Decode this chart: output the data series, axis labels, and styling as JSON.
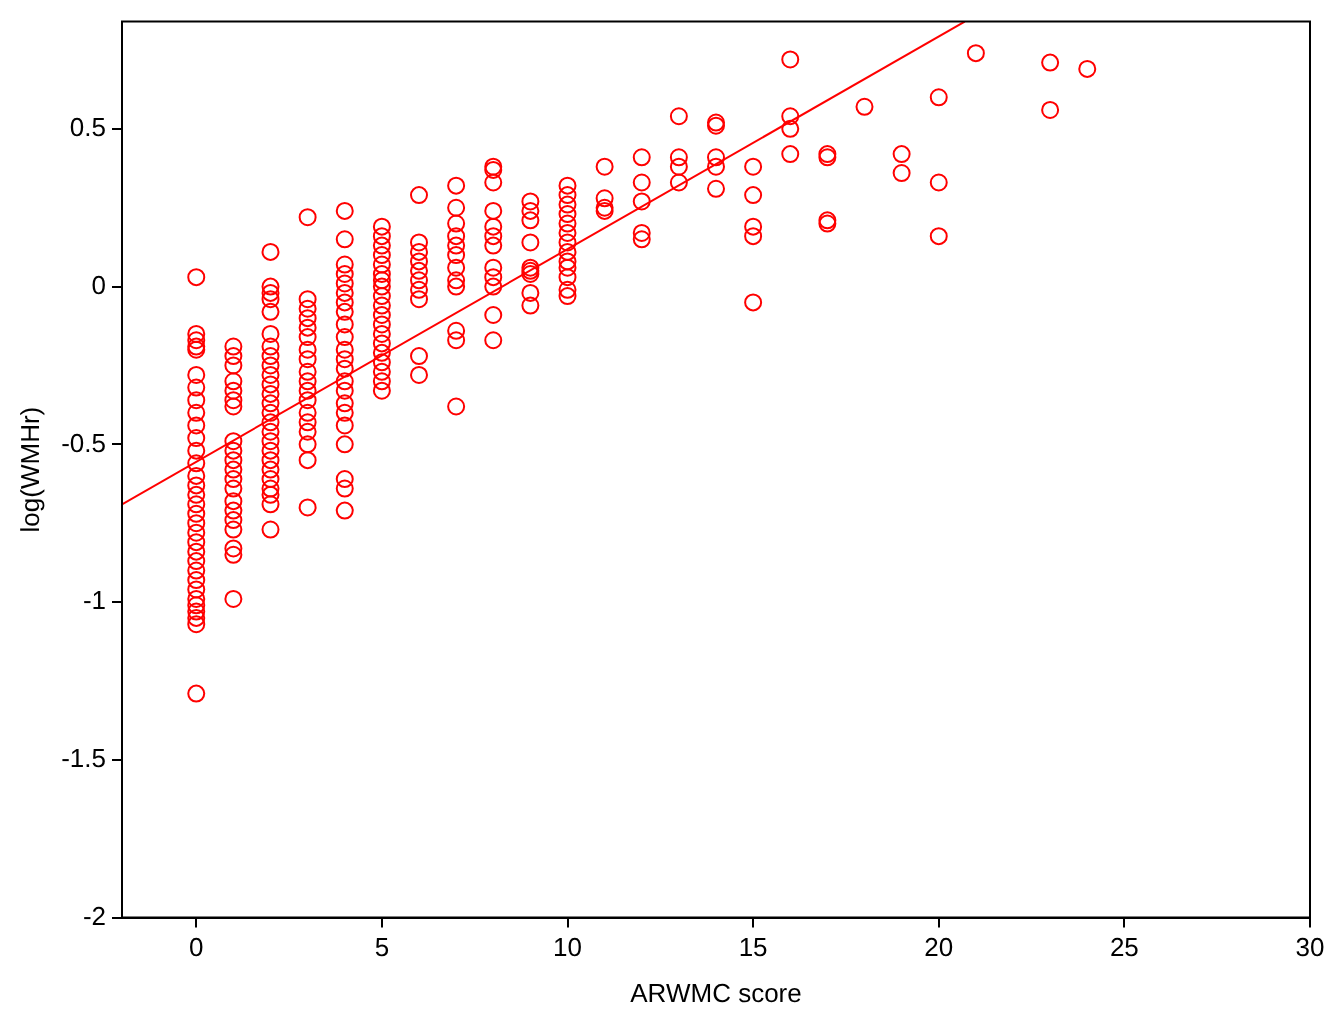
{
  "chart_data": {
    "type": "scatter",
    "xlabel": "ARWMC score",
    "ylabel": "log(WMHr)",
    "xlim": [
      -2,
      30
    ],
    "xticks": [
      0,
      5,
      10,
      15,
      20,
      25,
      30
    ],
    "ylim": [
      -2,
      0.84
    ],
    "yticks": [
      -2,
      -1.5,
      -1,
      -0.5,
      0,
      0.5
    ],
    "grid": false,
    "legend": false,
    "marker": "circle",
    "series": [
      {
        "color": "#ff0000",
        "x": [
          0,
          0,
          0,
          0,
          0,
          0,
          0,
          0,
          0,
          0,
          0,
          0,
          0,
          0,
          0,
          0,
          0,
          0,
          0,
          0,
          0,
          0,
          0,
          0,
          0,
          0,
          0,
          0,
          0,
          0,
          0,
          0,
          1,
          1,
          1,
          1,
          1,
          1,
          1,
          1,
          1,
          1,
          1,
          1,
          1,
          1,
          1,
          1,
          1,
          1,
          1,
          1,
          2,
          2,
          2,
          2,
          2,
          2,
          2,
          2,
          2,
          2,
          2,
          2,
          2,
          2,
          2,
          2,
          2,
          2,
          2,
          2,
          2,
          2,
          2,
          2,
          2,
          3,
          3,
          3,
          3,
          3,
          3,
          3,
          3,
          3,
          3,
          3,
          3,
          3,
          3,
          3,
          3,
          3,
          3,
          4,
          4,
          4,
          4,
          4,
          4,
          4,
          4,
          4,
          4,
          4,
          4,
          4,
          4,
          4,
          4,
          4,
          4,
          4,
          4,
          4,
          4,
          5,
          5,
          5,
          5,
          5,
          5,
          5,
          5,
          5,
          5,
          5,
          5,
          5,
          5,
          5,
          5,
          5,
          5,
          5,
          6,
          6,
          6,
          6,
          6,
          6,
          6,
          6,
          6,
          6,
          7,
          7,
          7,
          7,
          7,
          7,
          7,
          7,
          7,
          7,
          7,
          7,
          8,
          8,
          8,
          8,
          8,
          8,
          8,
          8,
          8,
          8,
          8,
          8,
          9,
          9,
          9,
          9,
          9,
          9,
          9,
          9,
          9,
          10,
          10,
          10,
          10,
          10,
          10,
          10,
          10,
          10,
          10,
          10,
          10,
          10,
          11,
          11,
          11,
          11,
          12,
          12,
          12,
          12,
          12,
          13,
          13,
          13,
          13,
          14,
          14,
          14,
          14,
          14,
          15,
          15,
          15,
          15,
          15,
          16,
          16,
          16,
          16,
          17,
          17,
          17,
          17,
          18,
          19,
          19,
          20,
          20,
          20,
          21,
          23,
          23,
          24
        ],
        "values": [
          0.03,
          -0.15,
          -0.17,
          -0.19,
          -0.2,
          -0.28,
          -0.32,
          -0.36,
          -0.4,
          -0.44,
          -0.48,
          -0.52,
          -0.56,
          -0.6,
          -0.63,
          -0.66,
          -0.69,
          -0.72,
          -0.75,
          -0.78,
          -0.81,
          -0.84,
          -0.87,
          -0.9,
          -0.93,
          -0.96,
          -0.99,
          -1.01,
          -1.03,
          -1.05,
          -1.07,
          -1.29,
          -0.19,
          -0.22,
          -0.25,
          -0.3,
          -0.33,
          -0.36,
          -0.38,
          -0.49,
          -0.52,
          -0.55,
          -0.58,
          -0.61,
          -0.64,
          -0.68,
          -0.71,
          -0.74,
          -0.77,
          -0.83,
          -0.85,
          -0.99,
          0.11,
          0,
          -0.02,
          -0.04,
          -0.08,
          -0.15,
          -0.19,
          -0.22,
          -0.25,
          -0.28,
          -0.31,
          -0.34,
          -0.37,
          -0.4,
          -0.43,
          -0.46,
          -0.49,
          -0.52,
          -0.55,
          -0.58,
          -0.61,
          -0.64,
          -0.66,
          -0.69,
          -0.77,
          0.22,
          -0.04,
          -0.07,
          -0.1,
          -0.13,
          -0.16,
          -0.2,
          -0.23,
          -0.27,
          -0.3,
          -0.33,
          -0.36,
          -0.4,
          -0.43,
          -0.46,
          -0.5,
          -0.55,
          -0.7,
          0.24,
          0.15,
          0.07,
          0.04,
          0.01,
          -0.02,
          -0.05,
          -0.08,
          -0.12,
          -0.16,
          -0.2,
          -0.23,
          -0.26,
          -0.3,
          -0.33,
          -0.37,
          -0.4,
          -0.44,
          -0.5,
          -0.61,
          -0.64,
          -0.71,
          0.19,
          0.16,
          0.13,
          0.1,
          0.07,
          0.04,
          0.02,
          0,
          -0.03,
          -0.06,
          -0.09,
          -0.12,
          -0.15,
          -0.18,
          -0.21,
          -0.24,
          -0.27,
          -0.3,
          -0.33,
          0.29,
          0.14,
          0.11,
          0.08,
          0.05,
          0.02,
          -0.01,
          -0.04,
          -0.22,
          -0.28,
          0.32,
          0.25,
          0.2,
          0.16,
          0.13,
          0.1,
          0.06,
          0.02,
          0,
          -0.14,
          -0.17,
          -0.38,
          0.38,
          0.37,
          0.33,
          0.24,
          0.19,
          0.16,
          0.13,
          0.06,
          0.03,
          0,
          -0.09,
          -0.17,
          0.27,
          0.24,
          0.21,
          0.14,
          0.06,
          0.05,
          0.04,
          -0.02,
          -0.06,
          0.32,
          0.29,
          0.26,
          0.23,
          0.2,
          0.17,
          0.14,
          0.11,
          0.08,
          0.06,
          0.03,
          -0.01,
          -0.03,
          0.38,
          0.28,
          0.25,
          0.24,
          0.41,
          0.33,
          0.27,
          0.17,
          0.15,
          0.54,
          0.41,
          0.38,
          0.33,
          0.52,
          0.51,
          0.41,
          0.38,
          0.31,
          0.38,
          0.29,
          0.19,
          0.16,
          -0.05,
          0.72,
          0.54,
          0.5,
          0.42,
          0.42,
          0.41,
          0.21,
          0.2,
          0.57,
          0.42,
          0.36,
          0.6,
          0.33,
          0.16,
          0.74,
          0.71,
          0.56,
          0.69
        ]
      },
      {
        "type": "line",
        "color": "#ff0000",
        "marker": "none",
        "x": [
          -2,
          20.7
        ],
        "values": [
          -0.69,
          0.84
        ]
      }
    ]
  }
}
